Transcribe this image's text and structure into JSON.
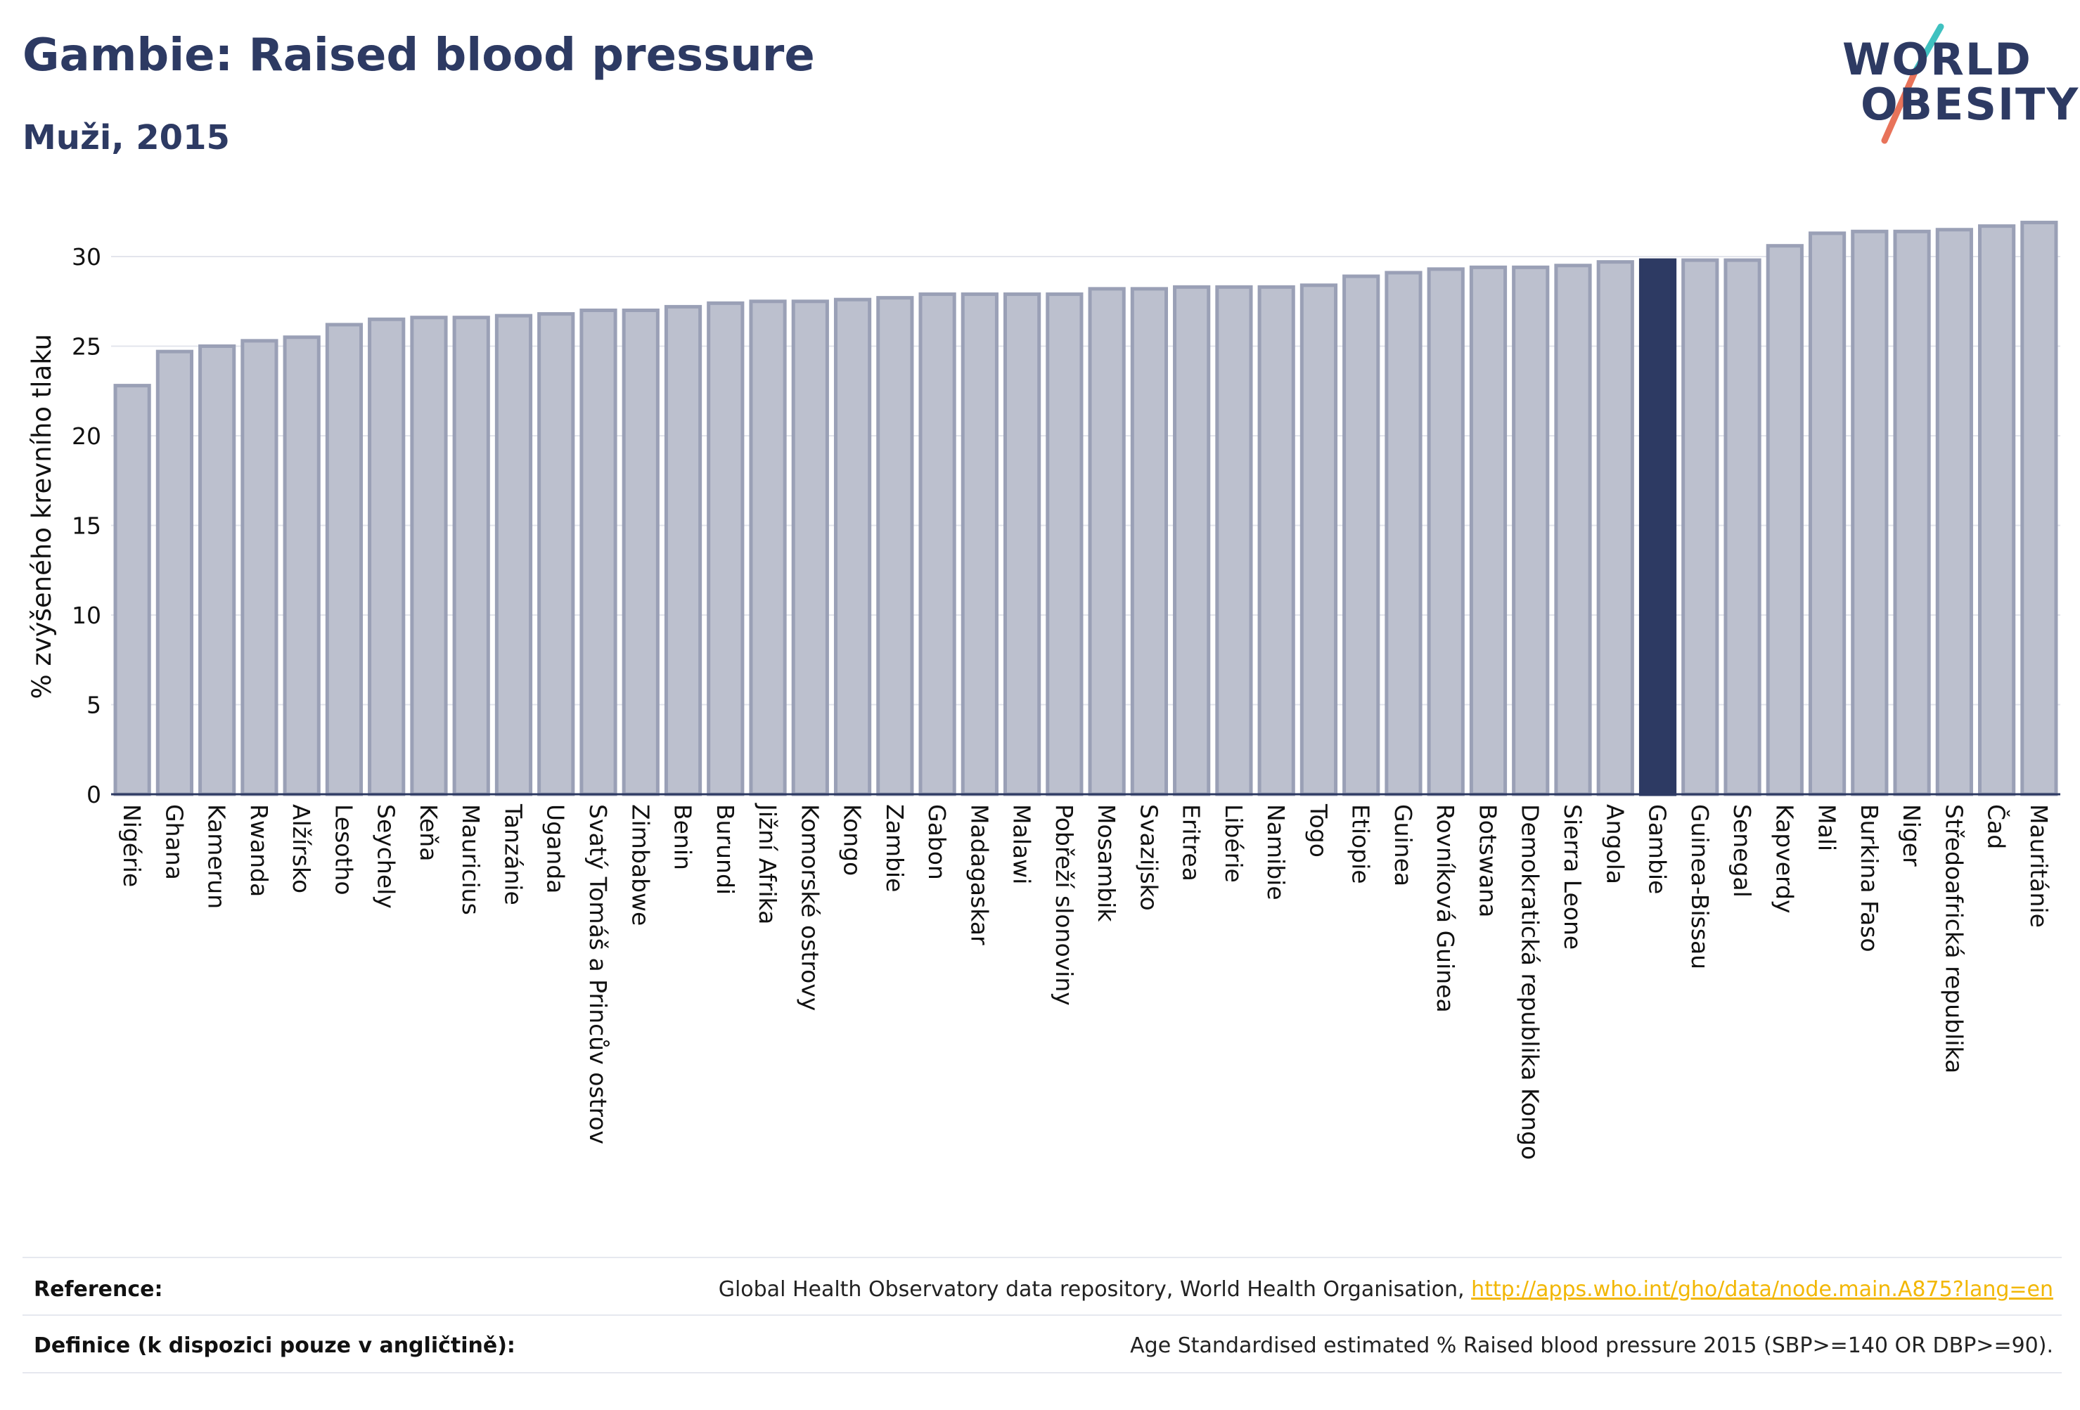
{
  "title": "Gambie: Raised blood pressure",
  "subtitle": "Muži, 2015",
  "logo": {
    "line1": "WORLD",
    "line2": "OBESITY",
    "slash_color_top": "#3fc1c0",
    "slash_color_bottom": "#e8735a"
  },
  "colors": {
    "bar": "#bcc0ce",
    "bar_border": "#9aa0b6",
    "highlight": "#2d3a63",
    "axis_text": "#111111"
  },
  "chart_data": {
    "type": "bar",
    "ylabel": "% zvýšeného krevního tlaku",
    "ylim": [
      0,
      32
    ],
    "yticks": [
      0,
      5,
      10,
      15,
      20,
      25,
      30
    ],
    "grid": true,
    "highlight": "Gambie",
    "categories": [
      "Nigérie",
      "Ghana",
      "Kamerun",
      "Rwanda",
      "Alžírsko",
      "Lesotho",
      "Seychely",
      "Keňa",
      "Mauricius",
      "Tanzánie",
      "Uganda",
      "Svatý Tomáš a Princův ostrov",
      "Zimbabwe",
      "Benin",
      "Burundi",
      "Jižní Afrika",
      "Komorské ostrovy",
      "Kongo",
      "Zambie",
      "Gabon",
      "Madagaskar",
      "Malawi",
      "Pobřeží slonoviny",
      "Mosambik",
      "Svazijsko",
      "Eritrea",
      "Libérie",
      "Namibie",
      "Togo",
      "Etiopie",
      "Guinea",
      "Rovníková Guinea",
      "Botswana",
      "Demokratická republika Kongo",
      "Sierra Leone",
      "Angola",
      "Gambie",
      "Guinea-Bissau",
      "Senegal",
      "Kapverdy",
      "Mali",
      "Burkina Faso",
      "Niger",
      "Středoafrická republika",
      "Čad",
      "Mauritánie"
    ],
    "values": [
      22.8,
      24.7,
      25.0,
      25.3,
      25.5,
      26.2,
      26.5,
      26.6,
      26.6,
      26.7,
      26.8,
      27.0,
      27.0,
      27.2,
      27.4,
      27.5,
      27.5,
      27.6,
      27.7,
      27.9,
      27.9,
      27.9,
      27.9,
      28.2,
      28.2,
      28.3,
      28.3,
      28.3,
      28.4,
      28.9,
      29.1,
      29.3,
      29.4,
      29.4,
      29.5,
      29.7,
      29.8,
      29.8,
      29.8,
      30.6,
      31.3,
      31.4,
      31.4,
      31.5,
      31.7,
      31.9
    ]
  },
  "footer": {
    "reference_label": "Reference:",
    "reference_text": "Global Health Observatory data repository, World Health Organisation,",
    "reference_link": "http://apps.who.int/gho/data/node.main.A875?lang=en",
    "definition_label": "Definice (k dispozici pouze v angličtině):",
    "definition_text": "Age Standardised estimated % Raised blood pressure 2015 (SBP>=140 OR DBP>=90)."
  }
}
